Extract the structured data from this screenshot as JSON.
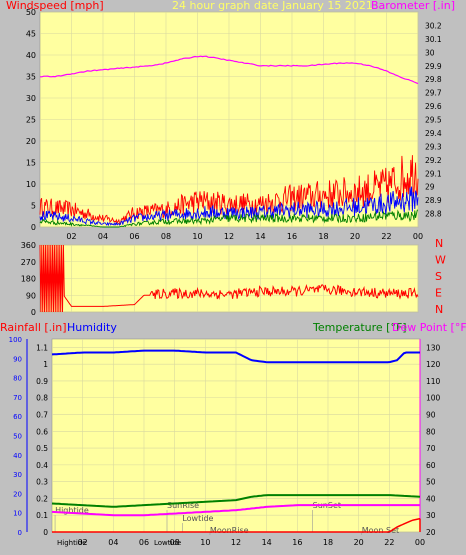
{
  "chart_data": [
    {
      "type": "line",
      "title": "24 hour graph date   January 15 2021",
      "ylabel_left": "Windspeed [mph]",
      "ylabel_right": "Barometer [.in]",
      "x_ticks": [
        "02",
        "04",
        "06",
        "08",
        "10",
        "12",
        "14",
        "16",
        "18",
        "20",
        "22",
        "00"
      ],
      "ylim_left": [
        0,
        50
      ],
      "y_ticks_left": [
        "0",
        "5",
        "10",
        "15",
        "20",
        "25",
        "30",
        "35",
        "40",
        "45",
        "50"
      ],
      "ylim_right": [
        28.7,
        30.3
      ],
      "y_ticks_right": [
        "28.8",
        "28.9",
        "29",
        "29.1",
        "29.2",
        "29.3",
        "29.4",
        "29.5",
        "29.6",
        "29.7",
        "29.8",
        "29.9",
        "30",
        "30.1",
        "30.2"
      ],
      "colors": {
        "gust": "#ff0000",
        "avg": "#0000ff",
        "min": "#008000",
        "barometer": "#ff00ff"
      },
      "series": [
        {
          "name": "Barometer",
          "axis": "right",
          "color": "#ff00ff",
          "x": [
            0,
            1,
            2,
            3,
            4,
            5,
            6,
            7,
            8,
            9,
            10,
            10.5,
            11,
            12,
            13,
            14,
            15,
            16,
            17,
            18,
            19,
            20,
            21,
            22,
            23,
            24
          ],
          "values": [
            29.82,
            29.82,
            29.84,
            29.86,
            29.87,
            29.88,
            29.89,
            29.9,
            29.92,
            29.95,
            29.97,
            29.97,
            29.96,
            29.94,
            29.92,
            29.9,
            29.9,
            29.9,
            29.9,
            29.91,
            29.92,
            29.92,
            29.9,
            29.86,
            29.81,
            29.77
          ]
        }
      ],
      "wind_bands": {
        "x": [
          0,
          2,
          4,
          5,
          6,
          8,
          10,
          12,
          14,
          16,
          18,
          20,
          22,
          24
        ],
        "gust_max": [
          7,
          6,
          3,
          2,
          5,
          6,
          9,
          8,
          8,
          10,
          11,
          12,
          14,
          20
        ],
        "avg_max": [
          4,
          3,
          1,
          1,
          3,
          4,
          5,
          5,
          5,
          6,
          6,
          7,
          8,
          10
        ],
        "min_max": [
          2,
          1,
          0,
          0,
          1,
          2,
          2,
          3,
          3,
          3,
          3,
          3,
          4,
          4
        ]
      }
    },
    {
      "type": "line",
      "ylabel_right_letters": [
        "N",
        "W",
        "S",
        "E",
        "N"
      ],
      "ylim": [
        0,
        360
      ],
      "y_ticks": [
        "0",
        "90",
        "180",
        "270",
        "360"
      ],
      "color": "#ff0000",
      "series": [
        {
          "name": "Wind direction",
          "x": [
            0,
            0.6,
            1.2,
            1.5,
            2,
            3,
            4,
            5,
            6,
            6.6,
            7,
            8,
            10,
            12,
            14,
            16,
            18,
            20,
            22,
            24
          ],
          "values": [
            360,
            360,
            360,
            90,
            30,
            30,
            30,
            35,
            40,
            90,
            90,
            100,
            100,
            95,
            110,
            110,
            120,
            110,
            100,
            100
          ]
        }
      ]
    },
    {
      "type": "line",
      "ylabel_left": "Rainfall [.in]",
      "ylabel_left2": "Humidity",
      "ylabel_right": "Temperature [°F]",
      "ylabel_right2": "Dew Point [°F]",
      "x_ticks": [
        "02",
        "04",
        "06",
        "08",
        "10",
        "12",
        "14",
        "16",
        "18",
        "20",
        "22",
        "00"
      ],
      "y_ticks_left": [
        "0",
        "0.1",
        "0.2",
        "0.3",
        "0.4",
        "0.5",
        "0.6",
        "0.7",
        "0.8",
        "0.9",
        "1",
        "1.1"
      ],
      "y_ticks_humidity": [
        "0",
        "10",
        "20",
        "30",
        "40",
        "50",
        "60",
        "70",
        "80",
        "90",
        "100"
      ],
      "y_ticks_right": [
        "20",
        "30",
        "40",
        "50",
        "60",
        "70",
        "80",
        "90",
        "100",
        "110",
        "120",
        "130"
      ],
      "ylim_rain": [
        0,
        1.15
      ],
      "ylim_humidity": [
        0,
        100
      ],
      "ylim_temp": [
        20,
        135
      ],
      "colors": {
        "rain": "#ff0000",
        "humidity": "#0000ff",
        "temperature": "#008000",
        "dewpoint": "#ff00ff"
      },
      "series": [
        {
          "name": "Humidity",
          "axis": "humidity",
          "color": "#0000ff",
          "x": [
            0,
            2,
            4,
            6,
            8,
            10,
            12,
            12.5,
            13,
            14,
            16,
            18,
            20,
            22,
            22.5,
            23,
            24
          ],
          "values": [
            92,
            93,
            93,
            94,
            94,
            93,
            93,
            91,
            89,
            88,
            88,
            88,
            88,
            88,
            89,
            93,
            93
          ]
        },
        {
          "name": "Temperature",
          "axis": "temp",
          "color": "#008000",
          "x": [
            0,
            2,
            4,
            6,
            8,
            10,
            12,
            13,
            14,
            16,
            18,
            20,
            22,
            24
          ],
          "values": [
            37,
            36,
            35,
            36,
            37,
            38,
            39,
            41,
            42,
            42,
            42,
            42,
            42,
            41
          ]
        },
        {
          "name": "Dew Point",
          "axis": "temp",
          "color": "#ff00ff",
          "x": [
            0,
            2,
            4,
            6,
            8,
            10,
            12,
            14,
            16,
            18,
            20,
            22,
            24
          ],
          "values": [
            32,
            31,
            30,
            30,
            31,
            32,
            33,
            35,
            36,
            36,
            36,
            36,
            36
          ]
        },
        {
          "name": "Rainfall",
          "axis": "rain",
          "color": "#ff0000",
          "x": [
            0,
            22,
            22.5,
            23,
            23.5,
            24
          ],
          "values": [
            0,
            0,
            0.03,
            0.05,
            0.07,
            0.08
          ]
        }
      ],
      "annotations": [
        {
          "label": "Hightide",
          "x": 0.2,
          "row": 0
        },
        {
          "label": "SunRise",
          "x": 7.5,
          "row": 1
        },
        {
          "label": "Lowtide",
          "x": 8.5,
          "row": 2
        },
        {
          "label": "MoonRise",
          "x": 10.3,
          "row": 3
        },
        {
          "label": "SunSet",
          "x": 17.0,
          "row": 1
        },
        {
          "label": "Moon Set",
          "x": 20.2,
          "row": 3
        }
      ],
      "bottom_labels": [
        "Hightide",
        "Lowtide"
      ]
    }
  ]
}
